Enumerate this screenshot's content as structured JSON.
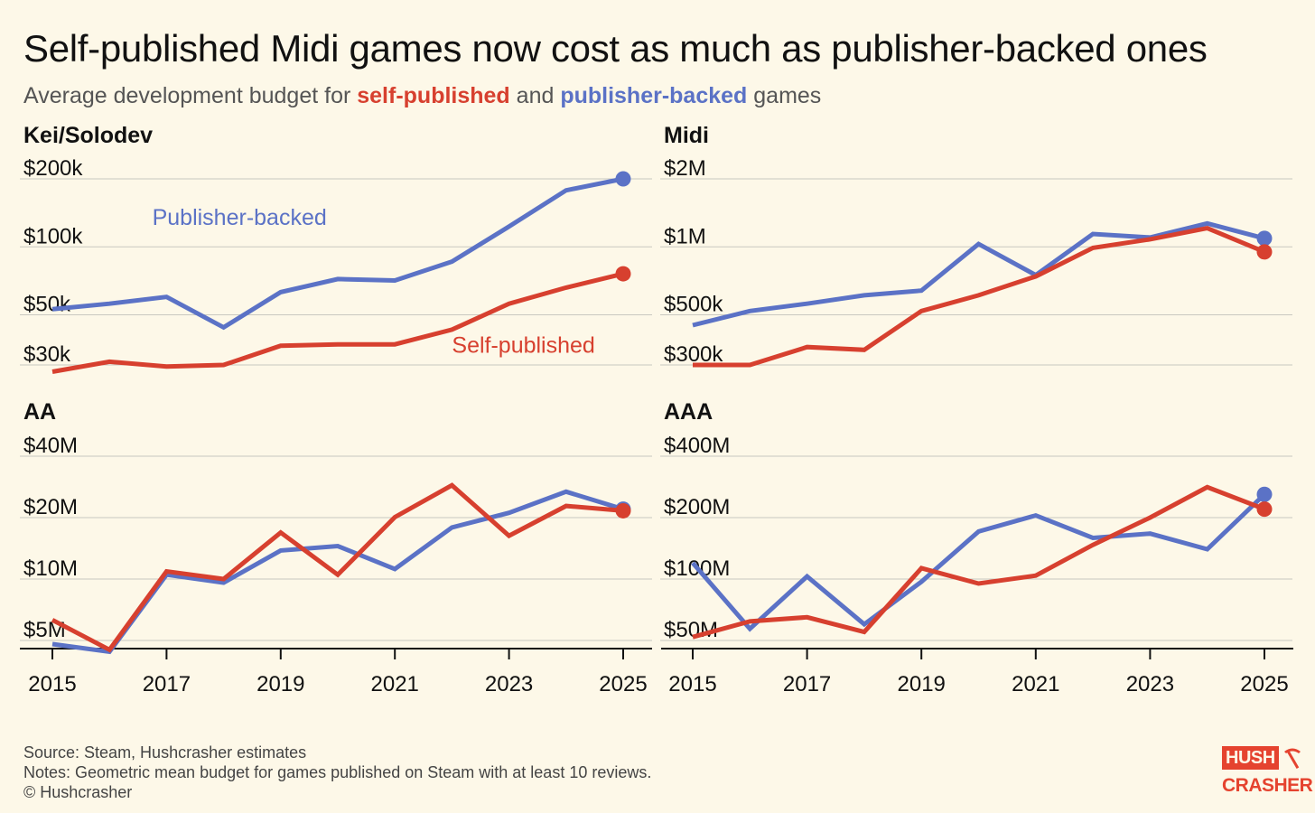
{
  "header": {
    "title": "Self-published Midi games now cost as much as publisher-backed ones",
    "subtitle_prefix": "Average development budget for ",
    "subtitle_self": "self-published",
    "subtitle_mid": " and ",
    "subtitle_pub": "publisher-backed",
    "subtitle_suffix": " games"
  },
  "footer": {
    "source": "Source: Steam, Hushcrasher estimates",
    "notes": "Notes: Geometric mean budget for games published on Steam with at least 10 reviews.",
    "copyright": "© Hushcrasher"
  },
  "logo": {
    "line1": "HUSH",
    "line2": "CRASHER",
    "pick": "pickaxe-icon"
  },
  "colors": {
    "self": "#d7402f",
    "pub": "#5b72c6",
    "grid": "#c8c8c0",
    "background": "#fdf8e8"
  },
  "chart_data": [
    {
      "type": "line",
      "title": "Kei/Solodev",
      "scale": "log",
      "ylim": [
        26000,
        210000
      ],
      "yticks": [
        {
          "value": 30000,
          "label": "$30k"
        },
        {
          "value": 50000,
          "label": "$50k"
        },
        {
          "value": 100000,
          "label": "$100k"
        },
        {
          "value": 200000,
          "label": "$200k"
        }
      ],
      "x": [
        2015,
        2016,
        2017,
        2018,
        2019,
        2020,
        2021,
        2022,
        2023,
        2024,
        2025
      ],
      "xticks": [
        2015,
        2017,
        2019,
        2021,
        2023,
        2025
      ],
      "series_labels": [
        {
          "series": "pub",
          "text": "Publisher-backed",
          "x": 2016.75,
          "y": 125000
        },
        {
          "series": "self",
          "text": "Self-published",
          "x": 2022.0,
          "y": 34000
        }
      ],
      "series": [
        {
          "key": "pub",
          "values": [
            53000,
            56000,
            60000,
            44000,
            63000,
            72000,
            71000,
            86000,
            123000,
            178000,
            200000
          ]
        },
        {
          "key": "self",
          "values": [
            28000,
            31000,
            29500,
            30000,
            36500,
            37000,
            37000,
            43000,
            56000,
            66000,
            76000
          ]
        }
      ]
    },
    {
      "type": "line",
      "title": "Midi",
      "scale": "log",
      "ylim": [
        260000,
        2100000
      ],
      "yticks": [
        {
          "value": 300000,
          "label": "$300k"
        },
        {
          "value": 500000,
          "label": "$500k"
        },
        {
          "value": 1000000,
          "label": "$1M"
        },
        {
          "value": 2000000,
          "label": "$2M"
        }
      ],
      "x": [
        2015,
        2016,
        2017,
        2018,
        2019,
        2020,
        2021,
        2022,
        2023,
        2024,
        2025
      ],
      "xticks": [
        2015,
        2017,
        2019,
        2021,
        2023,
        2025
      ],
      "series_labels": [],
      "series": [
        {
          "key": "pub",
          "values": [
            450000,
            520000,
            560000,
            610000,
            640000,
            1030000,
            750000,
            1140000,
            1100000,
            1270000,
            1090000
          ]
        },
        {
          "key": "self",
          "values": [
            300000,
            300000,
            360000,
            350000,
            520000,
            610000,
            740000,
            990000,
            1080000,
            1210000,
            950000
          ]
        }
      ]
    },
    {
      "type": "line",
      "title": "AA",
      "scale": "log",
      "ylim": [
        4400000,
        42000000
      ],
      "yticks": [
        {
          "value": 5000000,
          "label": "$5M"
        },
        {
          "value": 10000000,
          "label": "$10M"
        },
        {
          "value": 20000000,
          "label": "$20M"
        },
        {
          "value": 40000000,
          "label": "$40M"
        }
      ],
      "x": [
        2015,
        2016,
        2017,
        2018,
        2019,
        2020,
        2021,
        2022,
        2023,
        2024,
        2025
      ],
      "xticks": [
        2015,
        2017,
        2019,
        2021,
        2023,
        2025
      ],
      "series_labels": [],
      "series": [
        {
          "key": "pub",
          "values": [
            4800000,
            4400000,
            10500000,
            9600000,
            13800000,
            14500000,
            11200000,
            17900000,
            21100000,
            26800000,
            22000000
          ]
        },
        {
          "key": "self",
          "values": [
            6300000,
            4500000,
            10900000,
            10000000,
            16900000,
            10500000,
            20100000,
            28800000,
            16300000,
            22800000,
            21600000
          ]
        }
      ]
    },
    {
      "type": "line",
      "title": "AAA",
      "scale": "log",
      "ylim": [
        44000000,
        420000000
      ],
      "yticks": [
        {
          "value": 50000000,
          "label": "$50M"
        },
        {
          "value": 100000000,
          "label": "$100M"
        },
        {
          "value": 200000000,
          "label": "$200M"
        },
        {
          "value": 400000000,
          "label": "$400M"
        }
      ],
      "x": [
        2015,
        2016,
        2017,
        2018,
        2019,
        2020,
        2021,
        2022,
        2023,
        2024,
        2025
      ],
      "xticks": [
        2015,
        2017,
        2019,
        2021,
        2023,
        2025
      ],
      "series_labels": [],
      "series": [
        {
          "key": "pub",
          "values": [
            120000000,
            57000000,
            103000000,
            60000000,
            97000000,
            171000000,
            205000000,
            159000000,
            167000000,
            140000000,
            260000000
          ]
        },
        {
          "key": "self",
          "values": [
            52000000,
            62000000,
            65000000,
            55000000,
            113000000,
            95000000,
            104000000,
            147000000,
            200000000,
            282000000,
            220000000
          ]
        }
      ]
    }
  ]
}
